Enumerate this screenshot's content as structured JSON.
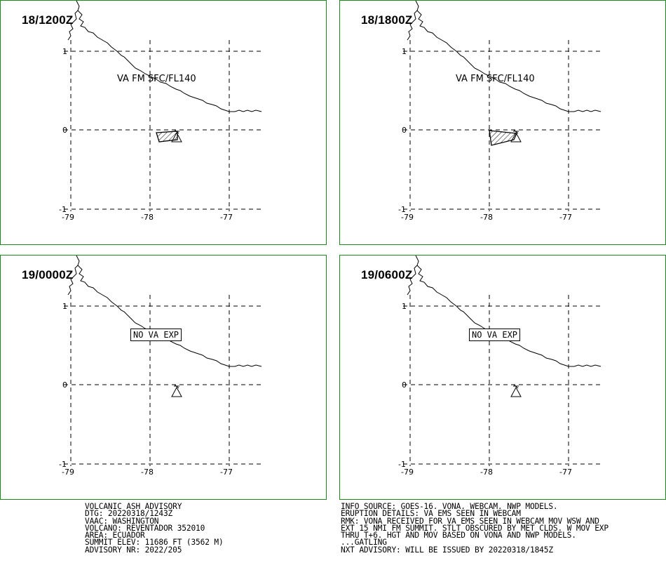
{
  "panels": [
    {
      "time": "18/1200Z",
      "label": "VA FM SFC/FL140",
      "kind": "ash"
    },
    {
      "time": "18/1800Z",
      "label": "VA FM SFC/FL140",
      "kind": "ash"
    },
    {
      "time": "19/0000Z",
      "label": "NO VA EXP",
      "kind": "none"
    },
    {
      "time": "19/0600Z",
      "label": "NO VA EXP",
      "kind": "none"
    }
  ],
  "axes": {
    "lat_ticks": [
      "1",
      "0",
      "-1"
    ],
    "lon_ticks": [
      "-79",
      "-78",
      "-77"
    ]
  },
  "advisory_left": [
    "VOLCANIC ASH ADVISORY",
    "DTG: 20220318/1243Z",
    "VAAC: WASHINGTON",
    "VOLCANO: REVENTADOR 352010",
    "AREA: ECUADOR",
    "SUMMIT ELEV: 11686 FT (3562 M)",
    "ADVISORY NR: 2022/205"
  ],
  "advisory_right": [
    "INFO SOURCE: GOES-16. VONA. WEBCAM. NWP MODELS.",
    "ERUPTION DETAILS: VA EMS SEEN IN WEBCAM",
    "RMK: VONA RECEIVED FOR VA EMS SEEN IN WEBCAM MOV WSW AND",
    "EXT 15 NMI FM SUMMIT. STLT OBSCURED BY MET CLDS. W MOV EXP",
    "THRU T+6. HGT AND MOV BASED ON VONA AND NWP MODELS.",
    "...GATLING",
    "NXT ADVISORY: WILL BE ISSUED BY 20220318/1845Z"
  ],
  "colors": {
    "border": "#1a8a1a",
    "lines": "#000000"
  }
}
